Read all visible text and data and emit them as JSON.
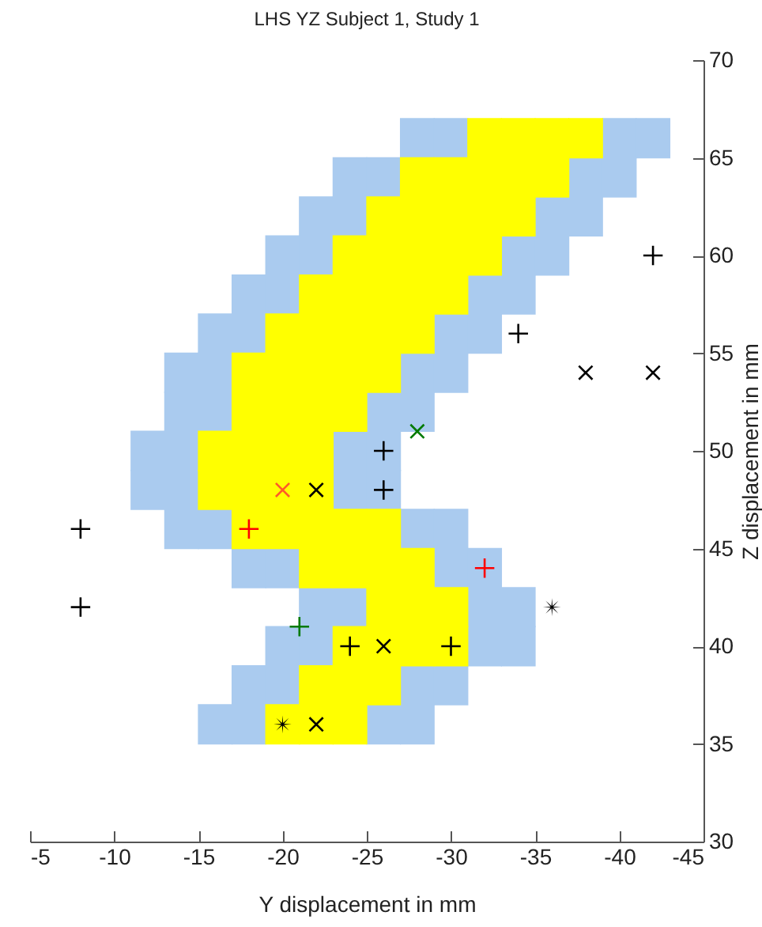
{
  "chart_data": {
    "type": "scatter",
    "title": "LHS YZ Subject 1, Study 1",
    "xlabel": "Y displacement in mm",
    "ylabel": "Z displacement in mm",
    "xlim": [
      -5,
      -45
    ],
    "xticks": [
      -5,
      -10,
      -15,
      -20,
      -25,
      -30,
      -35,
      -40,
      -45
    ],
    "ylim": [
      30,
      70
    ],
    "yticks": [
      30,
      35,
      40,
      45,
      50,
      55,
      60,
      65,
      70
    ],
    "legend": false,
    "series": [
      {
        "color": "#aacbef",
        "marker": "square",
        "x": [
          -28,
          -30,
          -40,
          -42,
          -24,
          -26,
          -38,
          -40,
          -22,
          -24,
          -36,
          -38,
          -20,
          -22,
          -34,
          -36,
          -18,
          -20,
          -32,
          -34,
          -16,
          -18,
          -30,
          -32,
          -14,
          -16,
          -28,
          -30,
          -14,
          -16,
          -26,
          -28,
          -12,
          -14,
          -24,
          -26,
          -12,
          -14,
          -24,
          -26,
          -14,
          -16,
          -28,
          -30,
          -18,
          -20,
          -30,
          -32,
          -22,
          -24,
          -32,
          -34,
          -20,
          -22,
          -32,
          -34,
          -18,
          -20,
          -28,
          -30,
          -16,
          -18,
          -26,
          -28
        ],
        "values": [
          66,
          66,
          66,
          66,
          64,
          64,
          64,
          64,
          62,
          62,
          62,
          62,
          60,
          60,
          60,
          60,
          58,
          58,
          58,
          58,
          56,
          56,
          56,
          56,
          54,
          54,
          54,
          54,
          52,
          52,
          52,
          52,
          50,
          50,
          50,
          50,
          48,
          48,
          48,
          48,
          46,
          46,
          46,
          46,
          44,
          44,
          44,
          44,
          42,
          42,
          42,
          42,
          40,
          40,
          40,
          40,
          38,
          38,
          38,
          38,
          36,
          36,
          36,
          36
        ]
      },
      {
        "color": "#ffff00",
        "marker": "square",
        "x": [
          -32,
          -34,
          -36,
          -38,
          -28,
          -30,
          -32,
          -34,
          -36,
          -26,
          -28,
          -30,
          -32,
          -34,
          -24,
          -26,
          -28,
          -30,
          -32,
          -22,
          -24,
          -26,
          -28,
          -30,
          -20,
          -22,
          -24,
          -26,
          -28,
          -18,
          -20,
          -22,
          -24,
          -26,
          -18,
          -20,
          -22,
          -24,
          -16,
          -18,
          -20,
          -22,
          -16,
          -18,
          -20,
          -22,
          -18,
          -20,
          -22,
          -24,
          -26,
          -22,
          -24,
          -26,
          -28,
          -26,
          -28,
          -30,
          -24,
          -26,
          -28,
          -30,
          -22,
          -24,
          -26,
          -20,
          -22,
          -24
        ],
        "values": [
          66,
          66,
          66,
          66,
          64,
          64,
          64,
          64,
          64,
          62,
          62,
          62,
          62,
          62,
          60,
          60,
          60,
          60,
          60,
          58,
          58,
          58,
          58,
          58,
          56,
          56,
          56,
          56,
          56,
          54,
          54,
          54,
          54,
          54,
          52,
          52,
          52,
          52,
          50,
          50,
          50,
          50,
          48,
          48,
          48,
          48,
          46,
          46,
          46,
          46,
          46,
          44,
          44,
          44,
          44,
          42,
          42,
          42,
          40,
          40,
          40,
          40,
          38,
          38,
          38,
          36,
          36,
          36
        ]
      },
      {
        "color": "#000000",
        "marker": "cross",
        "x": [
          -8,
          -8,
          -42,
          -34,
          -26,
          -26,
          -24,
          -30
        ],
        "values": [
          46,
          42,
          60,
          56,
          50,
          48,
          40,
          40
        ]
      },
      {
        "color": "#000000",
        "marker": "x",
        "x": [
          -38,
          -42,
          -22,
          -26,
          -22
        ],
        "values": [
          54,
          54,
          48,
          40,
          36
        ]
      },
      {
        "color": "#ff0000",
        "marker": "cross",
        "x": [
          -18,
          -32
        ],
        "values": [
          46,
          44
        ]
      },
      {
        "color": "#ff5a28",
        "marker": "x",
        "x": [
          -20
        ],
        "values": [
          48
        ]
      },
      {
        "color": "#000000",
        "marker": "star",
        "x": [
          -36,
          -20
        ],
        "values": [
          42,
          36
        ]
      },
      {
        "color": "#007a00",
        "marker": "cross",
        "x": [
          -21
        ],
        "values": [
          41
        ]
      },
      {
        "color": "#007a00",
        "marker": "x",
        "x": [
          -28
        ],
        "values": [
          51
        ]
      }
    ]
  }
}
